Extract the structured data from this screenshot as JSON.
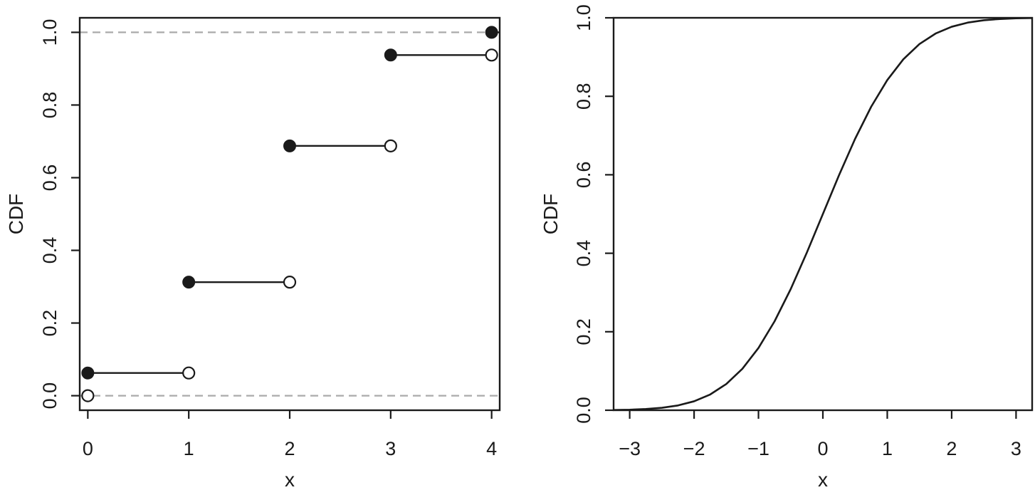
{
  "chart_data": [
    {
      "type": "step",
      "xlabel": "x",
      "ylabel": "CDF",
      "xlim": [
        -0.08,
        4.08
      ],
      "ylim": [
        -0.04,
        1.04
      ],
      "x_ticks": [
        0,
        1,
        2,
        3,
        4
      ],
      "x_tick_labels": [
        "0",
        "1",
        "2",
        "3",
        "4"
      ],
      "y_ticks": [
        0,
        0.2,
        0.4,
        0.6,
        0.8,
        1
      ],
      "y_tick_labels": [
        "0.0",
        "0.2",
        "0.4",
        "0.6",
        "0.8",
        "1.0"
      ],
      "reference_lines": [
        0,
        1
      ],
      "steps": [
        {
          "x_start": 0,
          "x_end": 1,
          "y": 0.0625,
          "prev_y": 0
        },
        {
          "x_start": 1,
          "x_end": 2,
          "y": 0.3125,
          "prev_y": 0.0625
        },
        {
          "x_start": 2,
          "x_end": 3,
          "y": 0.6875,
          "prev_y": 0.3125
        },
        {
          "x_start": 3,
          "x_end": 4,
          "y": 0.9375,
          "prev_y": 0.6875
        },
        {
          "x_start": 4,
          "x_end": 4.08,
          "y": 1,
          "prev_y": 0.9375
        }
      ],
      "line_color": "#1a1a1a",
      "reference_color": "#aaaaaa",
      "grid": false
    },
    {
      "type": "line",
      "xlabel": "x",
      "ylabel": "CDF",
      "xlim": [
        -3.25,
        3.25
      ],
      "ylim": [
        0,
        1
      ],
      "x_ticks": [
        -3,
        -2,
        -1,
        0,
        1,
        2,
        3
      ],
      "x_tick_labels": [
        "−3",
        "−2",
        "−1",
        "0",
        "1",
        "2",
        "3"
      ],
      "y_ticks": [
        0,
        0.2,
        0.4,
        0.6,
        0.8,
        1
      ],
      "y_tick_labels": [
        "0.0",
        "0.2",
        "0.4",
        "0.6",
        "0.8",
        "1.0"
      ],
      "x": [
        -3.25,
        -3.0,
        -2.75,
        -2.5,
        -2.25,
        -2.0,
        -1.75,
        -1.5,
        -1.25,
        -1.0,
        -0.75,
        -0.5,
        -0.25,
        0.0,
        0.25,
        0.5,
        0.75,
        1.0,
        1.25,
        1.5,
        1.75,
        2.0,
        2.25,
        2.5,
        2.75,
        3.0,
        3.25
      ],
      "y": [
        0.0006,
        0.0013,
        0.003,
        0.0062,
        0.0122,
        0.0228,
        0.0401,
        0.0668,
        0.1056,
        0.1587,
        0.2266,
        0.3085,
        0.4013,
        0.5,
        0.5987,
        0.6915,
        0.7734,
        0.8413,
        0.8944,
        0.9332,
        0.9599,
        0.9772,
        0.9878,
        0.9938,
        0.997,
        0.9987,
        0.9994
      ],
      "line_color": "#1a1a1a",
      "grid": false
    }
  ]
}
